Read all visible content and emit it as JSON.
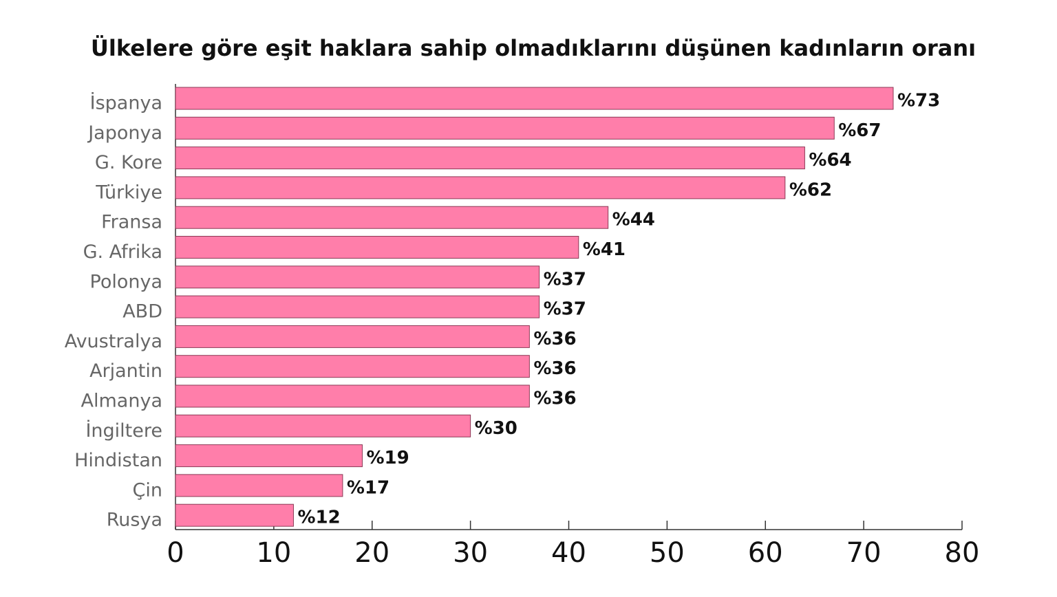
{
  "chart_data": {
    "type": "bar",
    "orientation": "horizontal",
    "title": "Ülkelere göre eşit haklara sahip olmadıklarını düşünen kadınların oranı",
    "categories": [
      "İspanya",
      "Japonya",
      "G. Kore",
      "Türkiye",
      "Fransa",
      "G. Afrika",
      "Polonya",
      "ABD",
      "Avustralya",
      "Arjantin",
      "Almanya",
      "İngiltere",
      "Hindistan",
      "Çin",
      "Rusya"
    ],
    "values": [
      73,
      67,
      64,
      62,
      44,
      41,
      37,
      37,
      36,
      36,
      36,
      30,
      19,
      17,
      12
    ],
    "value_labels": [
      "%73",
      "%67",
      "%64",
      "%62",
      "%44",
      "%41",
      "%37",
      "%37",
      "%36",
      "%36",
      "%36",
      "%30",
      "%19",
      "%17",
      "%12"
    ],
    "color": "#ff7eaa",
    "xlim": [
      0,
      80
    ],
    "xticks": [
      0,
      10,
      20,
      30,
      40,
      50,
      60,
      70,
      80
    ],
    "grid": false
  }
}
